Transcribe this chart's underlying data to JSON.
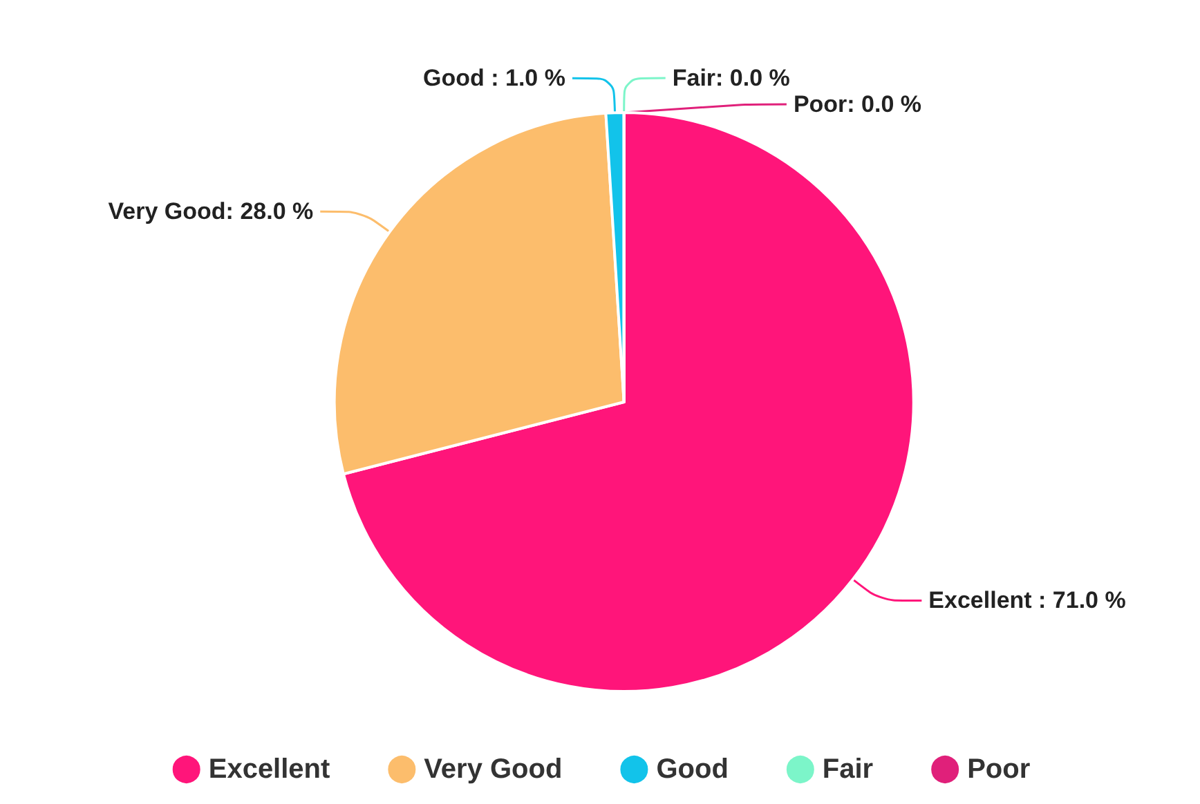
{
  "chart_data": {
    "type": "pie",
    "categories": [
      "Excellent",
      "Very Good",
      "Good",
      "Fair",
      "Poor"
    ],
    "values": [
      71.0,
      28.0,
      1.0,
      0.0,
      0.0
    ],
    "colors": [
      "#ff157a",
      "#fcbd6c",
      "#12c3ea",
      "#7cf5c9",
      "#e0207a"
    ],
    "value_labels": [
      "Excellent : 71.0 %",
      "Very Good: 28.0 %",
      "Good : 1.0 %",
      "Fair: 0.0 %",
      "Poor: 0.0 %"
    ],
    "legend": "bottom"
  }
}
